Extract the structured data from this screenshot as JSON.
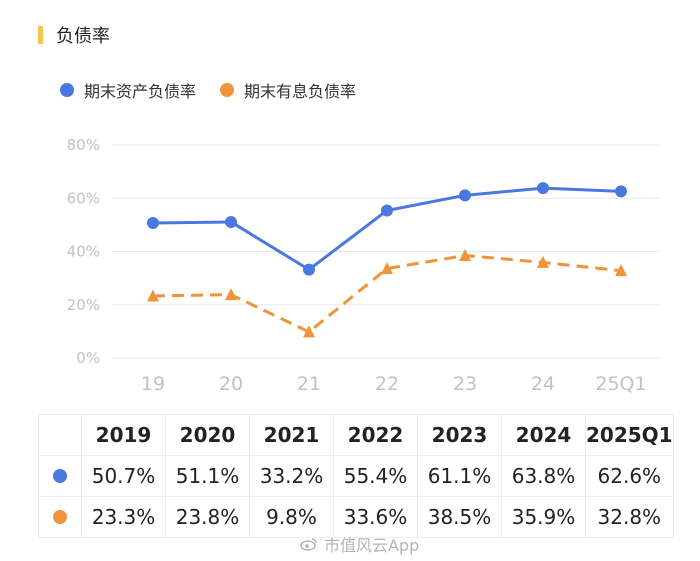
{
  "header": {
    "title": "负债率"
  },
  "legend": [
    {
      "label": "期末资产负债率",
      "color": "#4878e0"
    },
    {
      "label": "期末有息负债率",
      "color": "#f0933a"
    }
  ],
  "chart_data": {
    "type": "line",
    "categories": [
      "19",
      "20",
      "21",
      "22",
      "23",
      "24",
      "25Q1"
    ],
    "series": [
      {
        "name": "期末资产负债率",
        "values": [
          50.7,
          51.1,
          33.2,
          55.4,
          61.1,
          63.8,
          62.6
        ],
        "color": "#4878e0",
        "marker": "circle",
        "line_style": "solid"
      },
      {
        "name": "期末有息负债率",
        "values": [
          23.3,
          23.8,
          9.8,
          33.6,
          38.5,
          35.9,
          32.8
        ],
        "color": "#f0933a",
        "marker": "triangle",
        "line_style": "dashed"
      }
    ],
    "ylim": [
      0,
      80
    ],
    "yticks": [
      "0%",
      "20%",
      "40%",
      "60%",
      "80%"
    ],
    "grid": true,
    "legend_position": "top-left"
  },
  "table": {
    "headers": [
      "2019",
      "2020",
      "2021",
      "2022",
      "2023",
      "2024",
      "2025Q1"
    ],
    "rows": [
      {
        "color": "#4878e0",
        "cells": [
          "50.7%",
          "51.1%",
          "33.2%",
          "55.4%",
          "61.1%",
          "63.8%",
          "62.6%"
        ]
      },
      {
        "color": "#f0933a",
        "cells": [
          "23.3%",
          "23.8%",
          "9.8%",
          "33.6%",
          "38.5%",
          "35.9%",
          "32.8%"
        ]
      }
    ]
  },
  "watermark": {
    "text": "市值风云App"
  }
}
